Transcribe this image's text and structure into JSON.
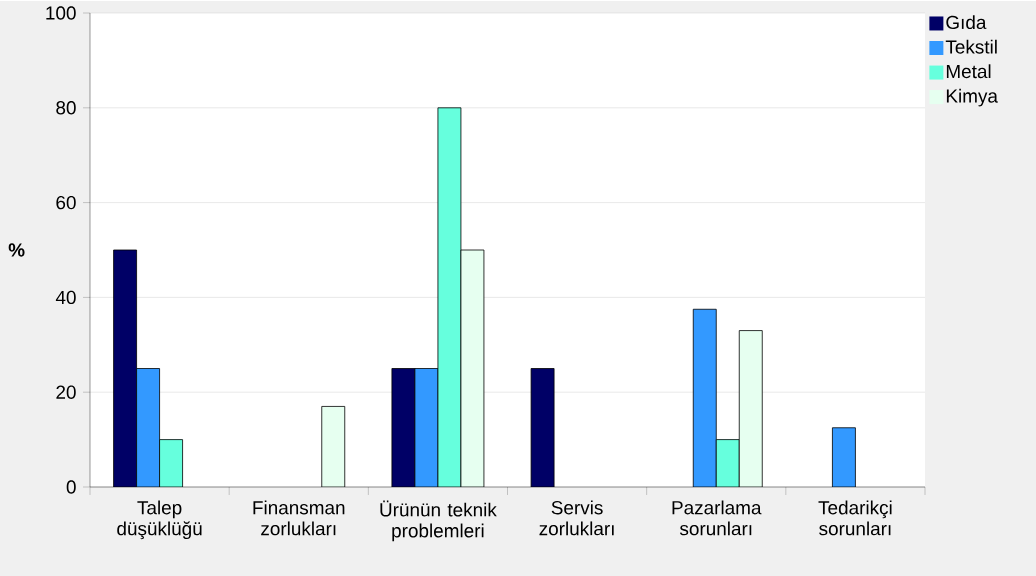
{
  "chart_data": {
    "type": "bar",
    "ylabel": "%",
    "categories": [
      "Talep düşüklüğü",
      "Finansman zorlukları",
      "Ürünün teknik problemleri",
      "Servis zorlukları",
      "Pazarlama sorunları",
      "Tedarikçi sorunları"
    ],
    "series": [
      {
        "name": "Gıda",
        "color": "#000066",
        "values": [
          50,
          null,
          25,
          25,
          null,
          null
        ]
      },
      {
        "name": "Tekstil",
        "color": "#3399ff",
        "values": [
          25,
          null,
          25,
          null,
          37.5,
          12.5
        ]
      },
      {
        "name": "Metal",
        "color": "#66ffdd",
        "values": [
          10,
          null,
          80,
          null,
          10,
          null
        ]
      },
      {
        "name": "Kimya",
        "color": "#e6fff0",
        "values": [
          null,
          17,
          50,
          null,
          33,
          null
        ]
      }
    ],
    "ylim": [
      0,
      100
    ],
    "yticks": [
      0,
      20,
      40,
      60,
      80,
      100
    ],
    "grid": "y",
    "legend": "top right"
  }
}
